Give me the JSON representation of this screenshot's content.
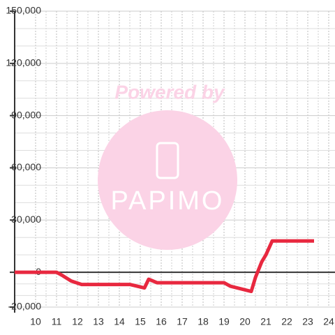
{
  "chart_data": {
    "type": "line",
    "annotations": [
      "Powered by",
      "PAPIMO"
    ],
    "series": [
      {
        "color": "#e8283f",
        "x": [
          9,
          11,
          11.3,
          11.7,
          12.2,
          13,
          14.5,
          15.2,
          15.4,
          15.8,
          19,
          19.3,
          20.3,
          20.5,
          20.8,
          21,
          21.3,
          23.3
        ],
        "values": [
          0,
          0,
          -2000,
          -5000,
          -7000,
          -7000,
          -7000,
          -9000,
          -4000,
          -6000,
          -6000,
          -8000,
          -11000,
          -3000,
          6000,
          10000,
          18000,
          18000
        ]
      }
    ],
    "xlim": [
      9,
      24.3
    ],
    "xticks": [
      10,
      11,
      12,
      13,
      14,
      15,
      16,
      17,
      18,
      19,
      20,
      21,
      22,
      23,
      24
    ],
    "ylim": [
      -20000,
      150000
    ],
    "yticks": [
      {
        "value": -20000,
        "label": "-20,000"
      },
      0,
      {
        "value": 30000,
        "label": "30,000"
      },
      {
        "value": 60000,
        "label": "60,000"
      },
      {
        "value": 90000,
        "label": "90,000"
      },
      {
        "value": 120000,
        "label": "120,000"
      },
      {
        "value": 150000,
        "label": "150,000"
      }
    ],
    "grid": true
  }
}
